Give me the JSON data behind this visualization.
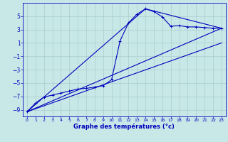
{
  "xlabel": "Graphe des températures (°c)",
  "background_color": "#c8e8e8",
  "grid_color": "#aacccc",
  "line_color": "#0000bb",
  "xlim": [
    -0.5,
    23.5
  ],
  "ylim": [
    -10.0,
    7.0
  ],
  "yticks": [
    -9,
    -7,
    -5,
    -3,
    -1,
    1,
    3,
    5
  ],
  "xticks": [
    0,
    1,
    2,
    3,
    4,
    5,
    6,
    7,
    8,
    9,
    10,
    11,
    12,
    13,
    14,
    15,
    16,
    17,
    18,
    19,
    20,
    21,
    22,
    23
  ],
  "line1_x": [
    0,
    1,
    2,
    3,
    4,
    5,
    6,
    7,
    8,
    9,
    10,
    11,
    12,
    13,
    14,
    15,
    16,
    17,
    18,
    19,
    20,
    21,
    22,
    23
  ],
  "line1_y": [
    -9.3,
    -8.0,
    -7.1,
    -6.8,
    -6.5,
    -6.2,
    -5.9,
    -5.8,
    -5.6,
    -5.4,
    -4.5,
    1.3,
    4.0,
    5.3,
    6.1,
    5.7,
    4.9,
    3.5,
    3.6,
    3.4,
    3.4,
    3.3,
    3.2,
    3.2
  ],
  "line2_x": [
    0,
    23
  ],
  "line2_y": [
    -9.3,
    3.2
  ],
  "line3_x": [
    0,
    14,
    23
  ],
  "line3_y": [
    -9.3,
    6.1,
    3.2
  ],
  "line4_x": [
    0,
    23
  ],
  "line4_y": [
    -9.3,
    1.0
  ]
}
